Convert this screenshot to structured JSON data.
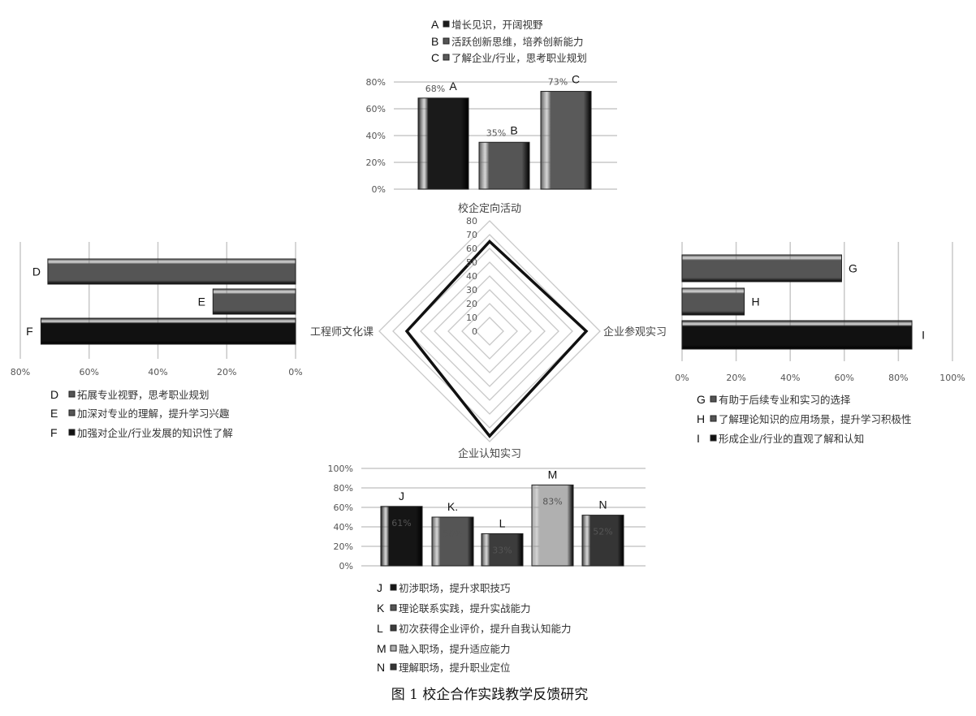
{
  "caption": "图 1 校企合作实践教学反馈研究",
  "chart_data": [
    {
      "type": "radar",
      "axes": [
        "校企定向活动",
        "企业参观实习",
        "企业认知实习",
        "工程师文化课"
      ],
      "values": [
        65,
        70,
        76,
        60
      ],
      "rlim": [
        0,
        80
      ],
      "ticks": [
        "0",
        "10",
        "20",
        "30",
        "40",
        "50",
        "60",
        "70",
        "80"
      ],
      "grid": true,
      "color": "#111111"
    },
    {
      "type": "bar",
      "group": "校企定向活动",
      "orientation": "vertical",
      "categories": [
        "A",
        "B",
        "C"
      ],
      "legend": [
        "增长见识，开阔视野",
        "活跃创新思维，培养创新能力",
        "了解企业/行业，思考职业规划"
      ],
      "values": [
        68,
        35,
        73
      ],
      "data_labels": [
        "68%",
        "35%",
        "73%"
      ],
      "colors": [
        "#1a1a1a",
        "#555555",
        "#5a5a5a"
      ],
      "ylim": [
        0,
        80
      ],
      "ticks": [
        "0%",
        "20%",
        "40%",
        "60%",
        "80%"
      ],
      "grid": true,
      "legend_position": "top"
    },
    {
      "type": "bar",
      "group": "工程师文化课",
      "orientation": "horizontal-reversed",
      "categories": [
        "D",
        "E",
        "F"
      ],
      "legend": [
        "拓展专业视野，思考职业规划",
        "加深对专业的理解，提升学习兴趣",
        "加强对企业/行业发展的知识性了解"
      ],
      "values": [
        72,
        24,
        74
      ],
      "colors": [
        "#555555",
        "#555555",
        "#111111"
      ],
      "xlim": [
        0,
        80
      ],
      "ticks": [
        "80%",
        "60%",
        "40%",
        "20%",
        "0%"
      ],
      "grid": true,
      "legend_position": "bottom"
    },
    {
      "type": "bar",
      "group": "企业参观实习",
      "orientation": "horizontal",
      "categories": [
        "G",
        "H",
        "I"
      ],
      "legend": [
        "有助于后续专业和实习的选择",
        "了解理论知识的应用场景，提升学习积极性",
        "形成企业/行业的直观了解和认知"
      ],
      "values": [
        59,
        23,
        85
      ],
      "colors": [
        "#555555",
        "#555555",
        "#111111"
      ],
      "xlim": [
        0,
        100
      ],
      "ticks": [
        "0%",
        "20%",
        "40%",
        "60%",
        "80%",
        "100%"
      ],
      "grid": true,
      "legend_position": "bottom"
    },
    {
      "type": "bar",
      "group": "企业认知实习",
      "orientation": "vertical",
      "categories": [
        "J",
        "K.",
        "L",
        "M",
        "N"
      ],
      "legend_letters": [
        "J",
        "K",
        "L",
        "M",
        "N"
      ],
      "legend": [
        "初涉职场，提升求职技巧",
        "理论联系实践，提升实战能力",
        "初次获得企业评价，提升自我认知能力",
        "融入职场，提升适应能力",
        "理解职场，提升职业定位"
      ],
      "values": [
        61,
        50,
        33,
        83,
        52
      ],
      "data_labels": [
        "61%",
        "50%",
        "33%",
        "83%",
        "52%"
      ],
      "colors": [
        "#151515",
        "#555555",
        "#3c3c3c",
        "#b0b0b0",
        "#353535"
      ],
      "ylim": [
        0,
        100
      ],
      "ticks": [
        "0%",
        "20%",
        "40%",
        "60%",
        "80%",
        "100%"
      ],
      "grid": true,
      "legend_position": "bottom"
    }
  ]
}
